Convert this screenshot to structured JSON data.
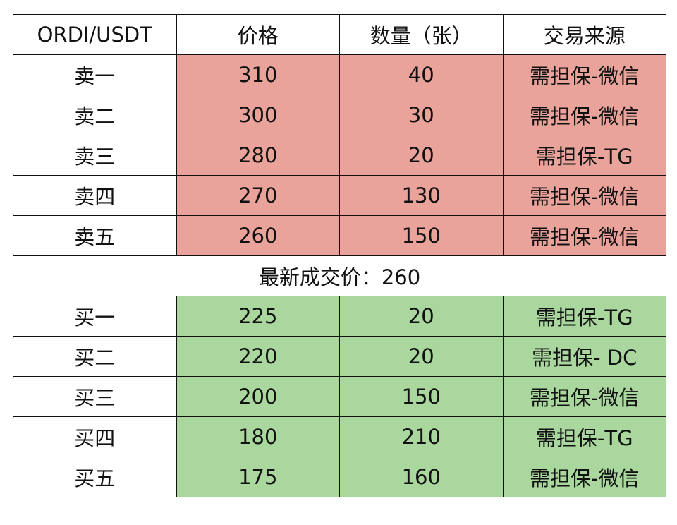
{
  "header": [
    "ORDI/USDT",
    "价格",
    "数量（张）",
    "交易来源"
  ],
  "sell_rows": [
    {
      "label": "卖一",
      "price": "310",
      "qty": "40",
      "source": "需担保-微信"
    },
    {
      "label": "卖二",
      "price": "300",
      "qty": "30",
      "source": "需担保-微信"
    },
    {
      "label": "卖三",
      "price": "280",
      "qty": "20",
      "source": "需担保-TG"
    },
    {
      "label": "卖四",
      "price": "270",
      "qty": "130",
      "source": "需担保-微信"
    },
    {
      "label": "卖五",
      "price": "260",
      "qty": "150",
      "source": "需担保-微信"
    }
  ],
  "last_price": "最新成交价：260",
  "buy_rows": [
    {
      "label": "买一",
      "price": "225",
      "qty": "20",
      "source": "需担保-TG"
    },
    {
      "label": "买二",
      "price": "220",
      "qty": "20",
      "source": "需担保- DC"
    },
    {
      "label": "买三",
      "price": "200",
      "qty": "150",
      "source": "需担保-微信"
    },
    {
      "label": "买四",
      "price": "180",
      "qty": "210",
      "source": "需担保-TG"
    },
    {
      "label": "买五",
      "price": "175",
      "qty": "160",
      "source": "需担保-微信"
    }
  ],
  "colors": {
    "sell": "#eaa39a",
    "buy": "#a9d79e"
  }
}
